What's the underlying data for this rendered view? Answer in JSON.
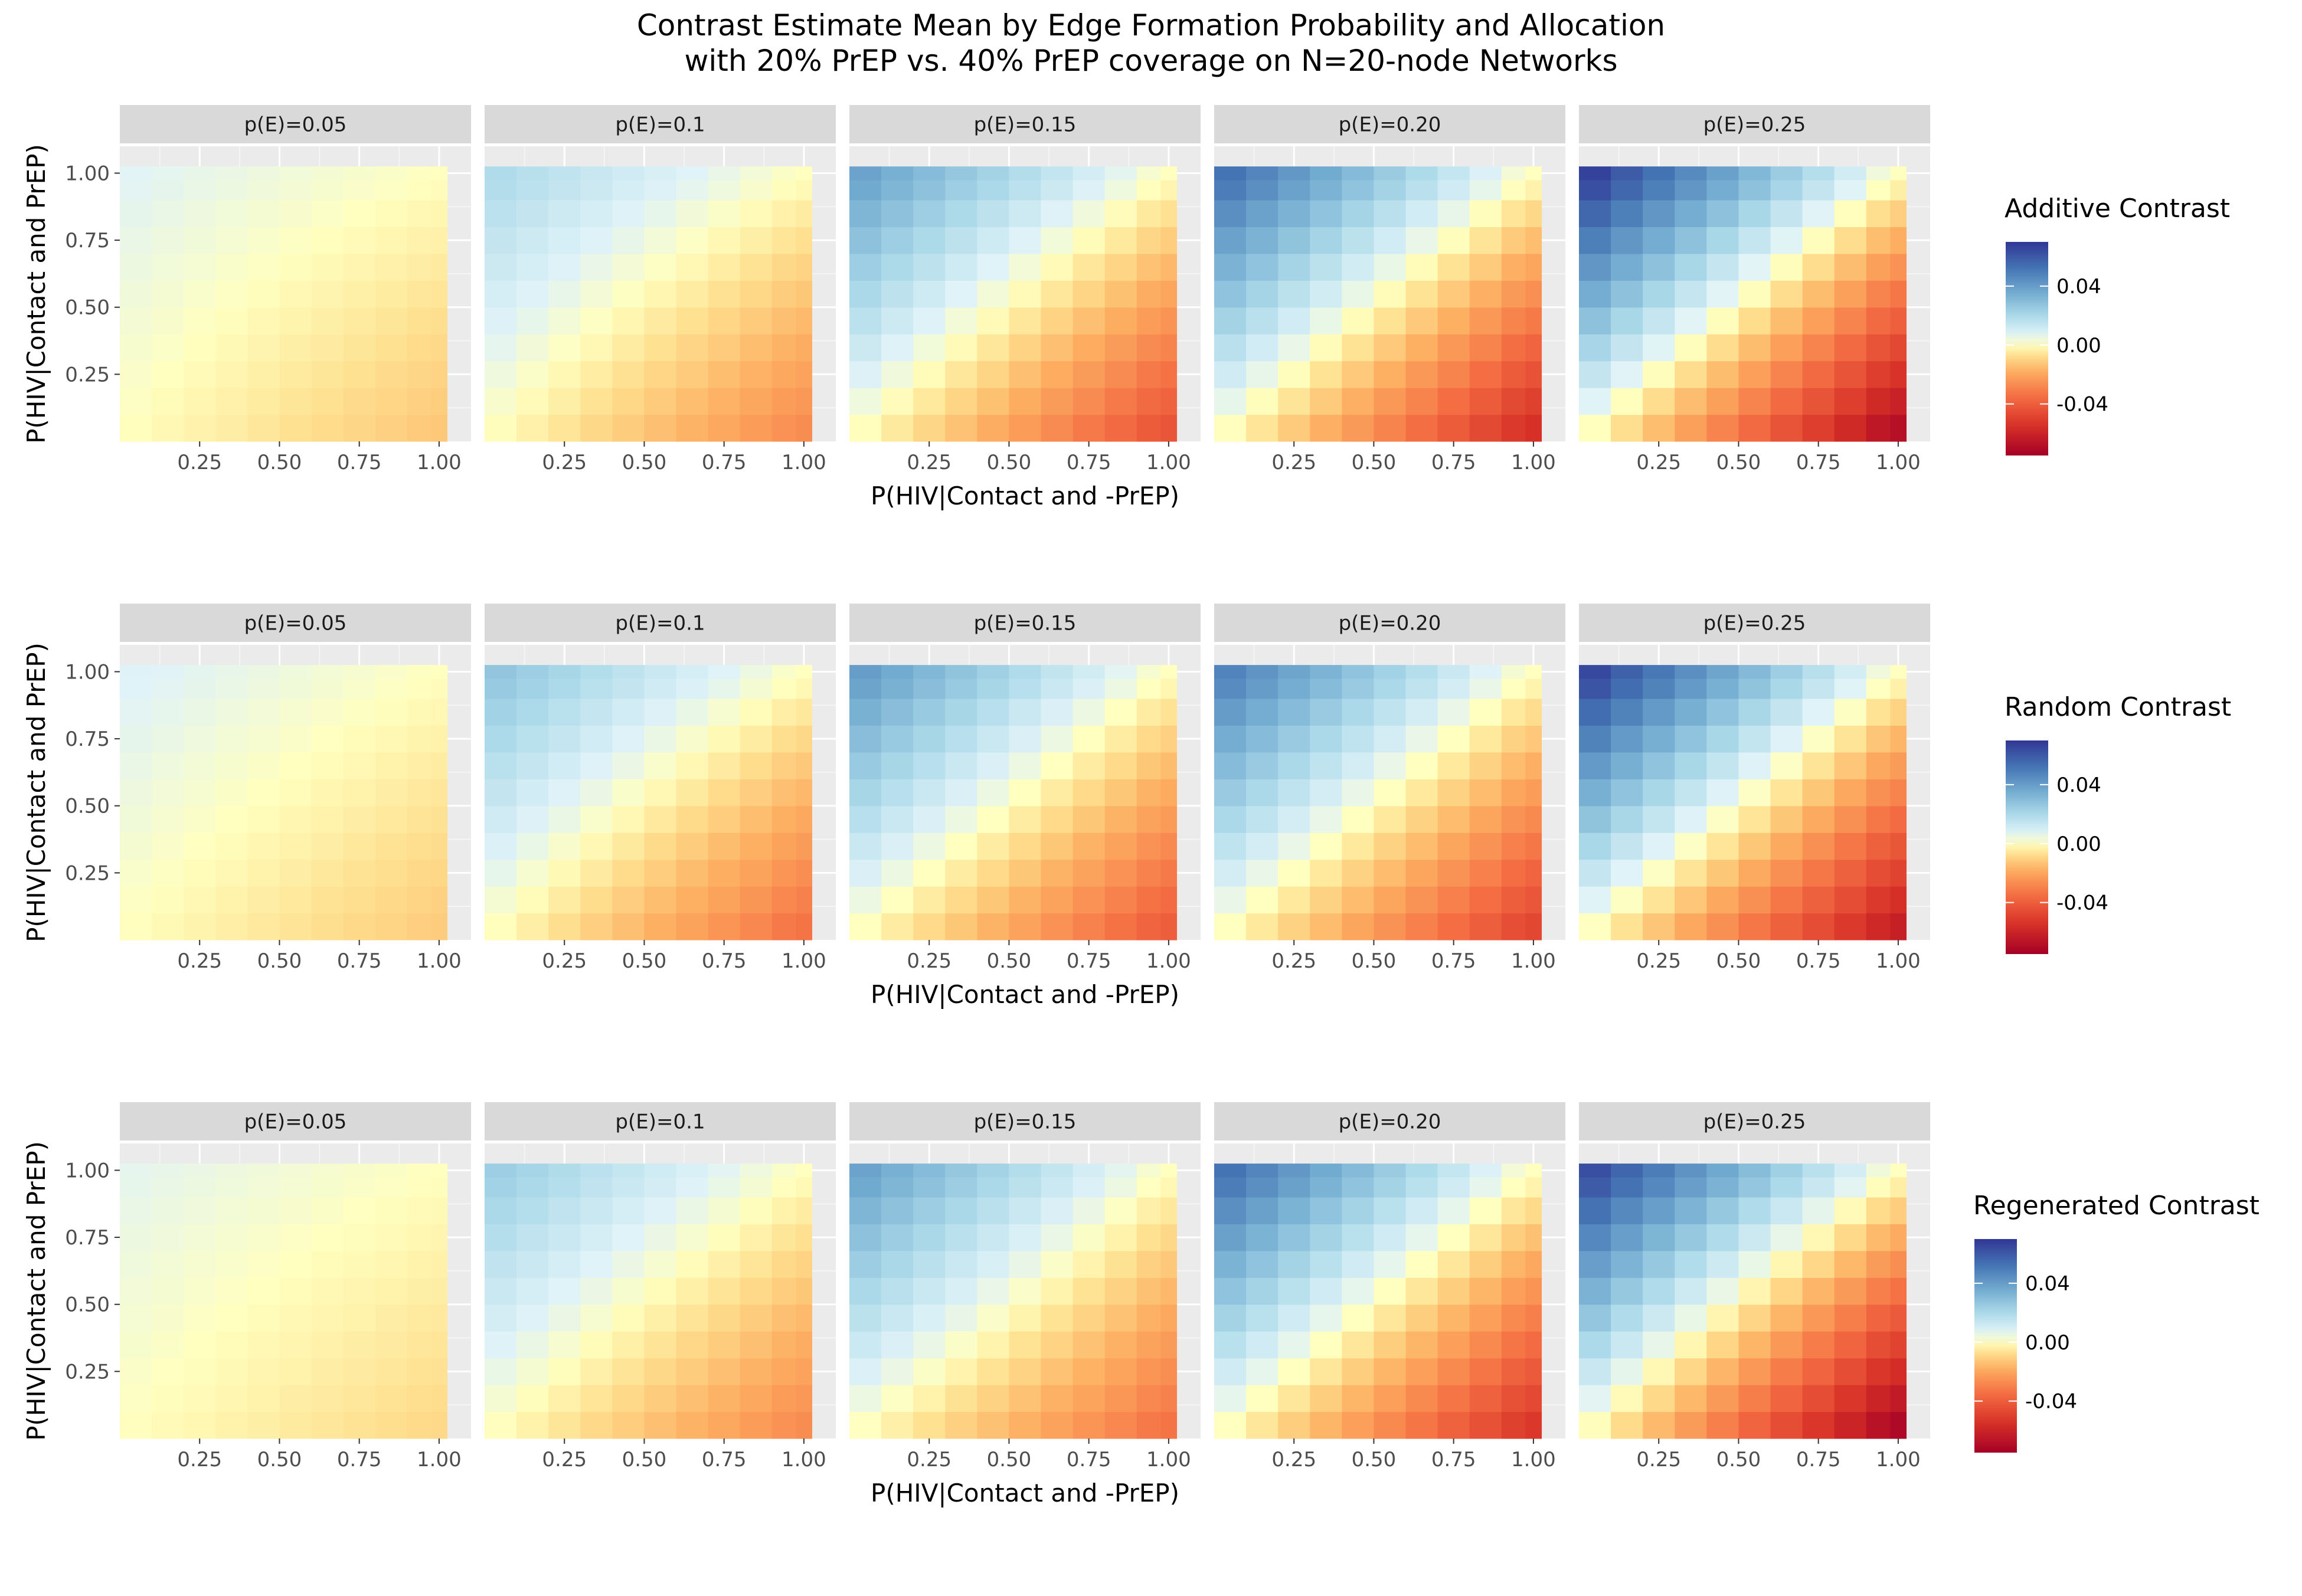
{
  "chart_data": {
    "type": "heatmap",
    "title_lines": [
      "Contrast Estimate Mean by Edge Formation Probability and Allocation",
      "with 20% PrEP vs. 40% PrEP coverage on N=20-node Networks"
    ],
    "xlabel": "P(HIV|Contact and -PrEP)",
    "ylabel": "P(HIV|Contact and PrEP)",
    "x_ticks": [
      "0.25",
      "0.50",
      "0.75",
      "1.00"
    ],
    "y_ticks": [
      "0.25",
      "0.50",
      "0.75",
      "1.00"
    ],
    "xlim": [
      0,
      1.1
    ],
    "ylim": [
      0,
      1.1
    ],
    "grid_values": [
      0.05,
      0.15,
      0.25,
      0.35,
      0.45,
      0.55,
      0.65,
      0.75,
      0.85,
      0.95,
      1.0
    ],
    "facets": [
      "p(E)=0.05",
      "p(E)=0.1",
      "p(E)=0.15",
      "p(E)=0.20",
      "p(E)=0.25"
    ],
    "colors": {
      "low": "#a50026",
      "mid": "#ffffbf",
      "high": "#313695",
      "panel_bg": "#ebebeb",
      "strip_bg": "#d9d9d9",
      "grid_line": "#ffffff"
    },
    "rows": [
      {
        "name": "Additive Contrast",
        "legend_ticks": [
          "0.04",
          "0.00",
          "-0.04"
        ],
        "legend_limits": [
          -0.075,
          0.07
        ],
        "panels": [
          {
            "facet": "p(E)=0.05",
            "max_value": 0.007,
            "min_value": -0.013
          },
          {
            "facet": "p(E)=0.1",
            "max_value": 0.02,
            "min_value": -0.028
          },
          {
            "facet": "p(E)=0.15",
            "max_value": 0.04,
            "min_value": -0.045
          },
          {
            "facet": "p(E)=0.20",
            "max_value": 0.055,
            "min_value": -0.058
          },
          {
            "facet": "p(E)=0.25",
            "max_value": 0.07,
            "min_value": -0.072
          }
        ]
      },
      {
        "name": "Random Contrast",
        "legend_ticks": [
          "0.04",
          "0.00",
          "-0.04"
        ],
        "legend_limits": [
          -0.075,
          0.07
        ],
        "panels": [
          {
            "facet": "p(E)=0.05",
            "max_value": 0.008,
            "min_value": -0.012
          },
          {
            "facet": "p(E)=0.1",
            "max_value": 0.028,
            "min_value": -0.035
          },
          {
            "facet": "p(E)=0.15",
            "max_value": 0.042,
            "min_value": -0.042
          },
          {
            "facet": "p(E)=0.20",
            "max_value": 0.05,
            "min_value": -0.05
          },
          {
            "facet": "p(E)=0.25",
            "max_value": 0.068,
            "min_value": -0.065
          }
        ]
      },
      {
        "name": "Regenerated Contrast",
        "legend_ticks": [
          "0.04",
          "0.00",
          "-0.04"
        ],
        "legend_limits": [
          -0.075,
          0.07
        ],
        "panels": [
          {
            "facet": "p(E)=0.05",
            "max_value": 0.006,
            "min_value": -0.009
          },
          {
            "facet": "p(E)=0.1",
            "max_value": 0.025,
            "min_value": -0.028
          },
          {
            "facet": "p(E)=0.15",
            "max_value": 0.04,
            "min_value": -0.035
          },
          {
            "facet": "p(E)=0.20",
            "max_value": 0.055,
            "min_value": -0.055
          },
          {
            "facet": "p(E)=0.25",
            "max_value": 0.066,
            "min_value": -0.075
          }
        ]
      }
    ]
  }
}
